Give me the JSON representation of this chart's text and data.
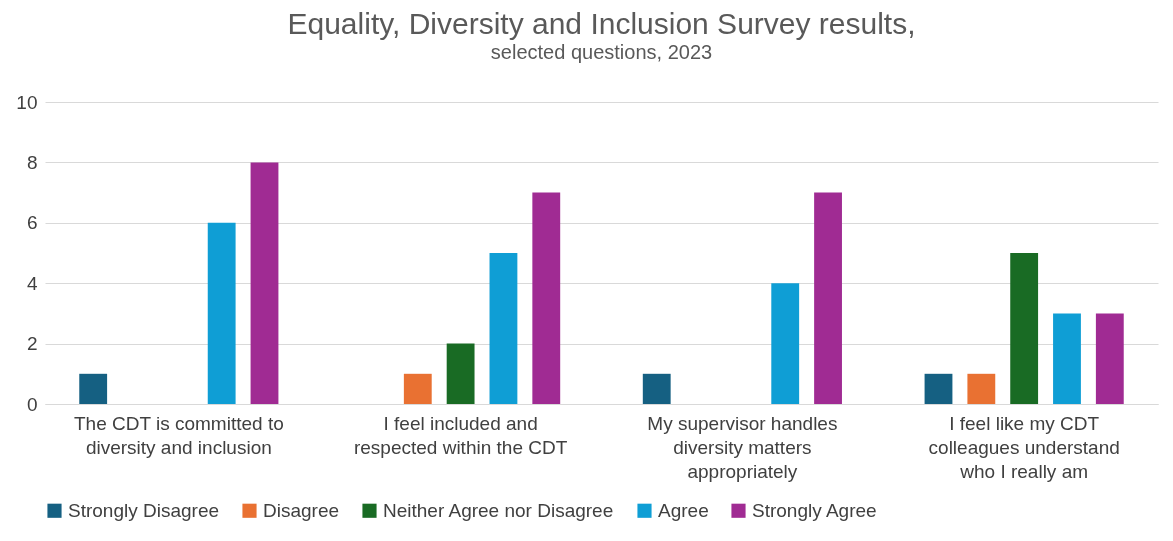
{
  "chart_data": {
    "type": "bar",
    "title": "Equality, Diversity and Inclusion Survey results,",
    "subtitle": "selected questions, 2023",
    "categories": [
      "The CDT is committed to diversity and inclusion",
      "I feel included and respected within the CDT",
      "My supervisor handles diversity matters appropriately",
      "I feel like my CDT colleagues understand who I really am"
    ],
    "series": [
      {
        "name": "Strongly Disagree",
        "color": "#156082",
        "values": [
          1,
          0,
          1,
          1
        ]
      },
      {
        "name": "Disagree",
        "color": "#e97132",
        "values": [
          0,
          1,
          0,
          1
        ]
      },
      {
        "name": "Neither Agree nor Disagree",
        "color": "#196b24",
        "values": [
          0,
          2,
          0,
          5
        ]
      },
      {
        "name": "Agree",
        "color": "#0f9ed5",
        "values": [
          6,
          5,
          4,
          3
        ]
      },
      {
        "name": "Strongly Agree",
        "color": "#a02b93",
        "values": [
          8,
          7,
          7,
          3
        ]
      }
    ],
    "ylim": [
      0,
      10
    ],
    "yticks": [
      0,
      2,
      4,
      6,
      8,
      10
    ],
    "grid": "y",
    "legend": "bottom"
  }
}
